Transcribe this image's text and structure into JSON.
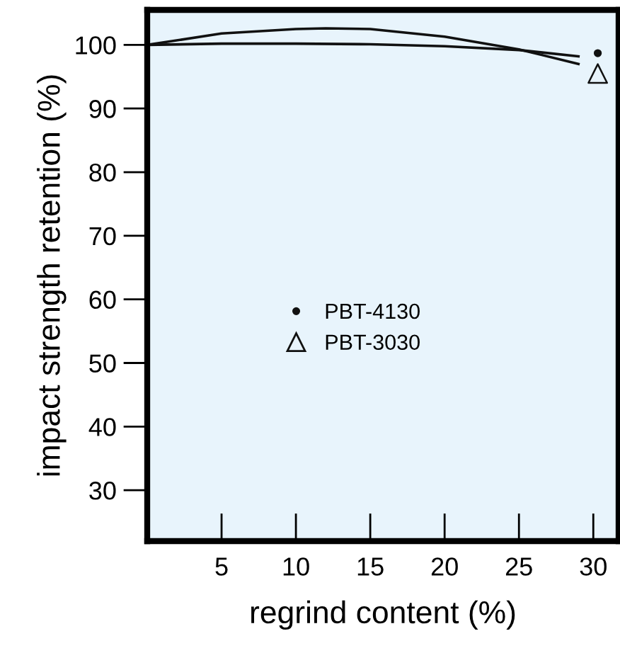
{
  "chart_data": {
    "type": "line",
    "xlabel": "regrind content (%)",
    "ylabel": "impact strength retention (%)",
    "series": [
      {
        "color": "#111111",
        "x": [
          0,
          5,
          10,
          15,
          20,
          25,
          29
        ],
        "values": [
          100,
          100.2,
          100.2,
          100.1,
          99.8,
          99.2,
          98.2
        ]
      },
      {
        "color": "#111111",
        "x": [
          0,
          5,
          10,
          12,
          15,
          20,
          25,
          29
        ],
        "values": [
          100,
          101.8,
          102.5,
          102.6,
          102.5,
          101.3,
          99.3,
          97.0
        ]
      },
      {
        "type": "scatter",
        "name": "PBT-4130",
        "marker": "circle",
        "color": "#111111",
        "x": [
          30.3
        ],
        "values": [
          98.7
        ]
      },
      {
        "type": "scatter",
        "name": "PBT-3030",
        "marker": "triangle",
        "color": "#111111",
        "x": [
          30.3
        ],
        "values": [
          95.5
        ]
      }
    ],
    "xlim": [
      0,
      31.7
    ],
    "ylim": [
      22,
      105.5
    ],
    "xticks": [
      5,
      10,
      15,
      20,
      25,
      30
    ],
    "yticks": [
      30,
      40,
      50,
      60,
      70,
      80,
      90,
      100
    ],
    "grid": false,
    "legend": "center"
  }
}
